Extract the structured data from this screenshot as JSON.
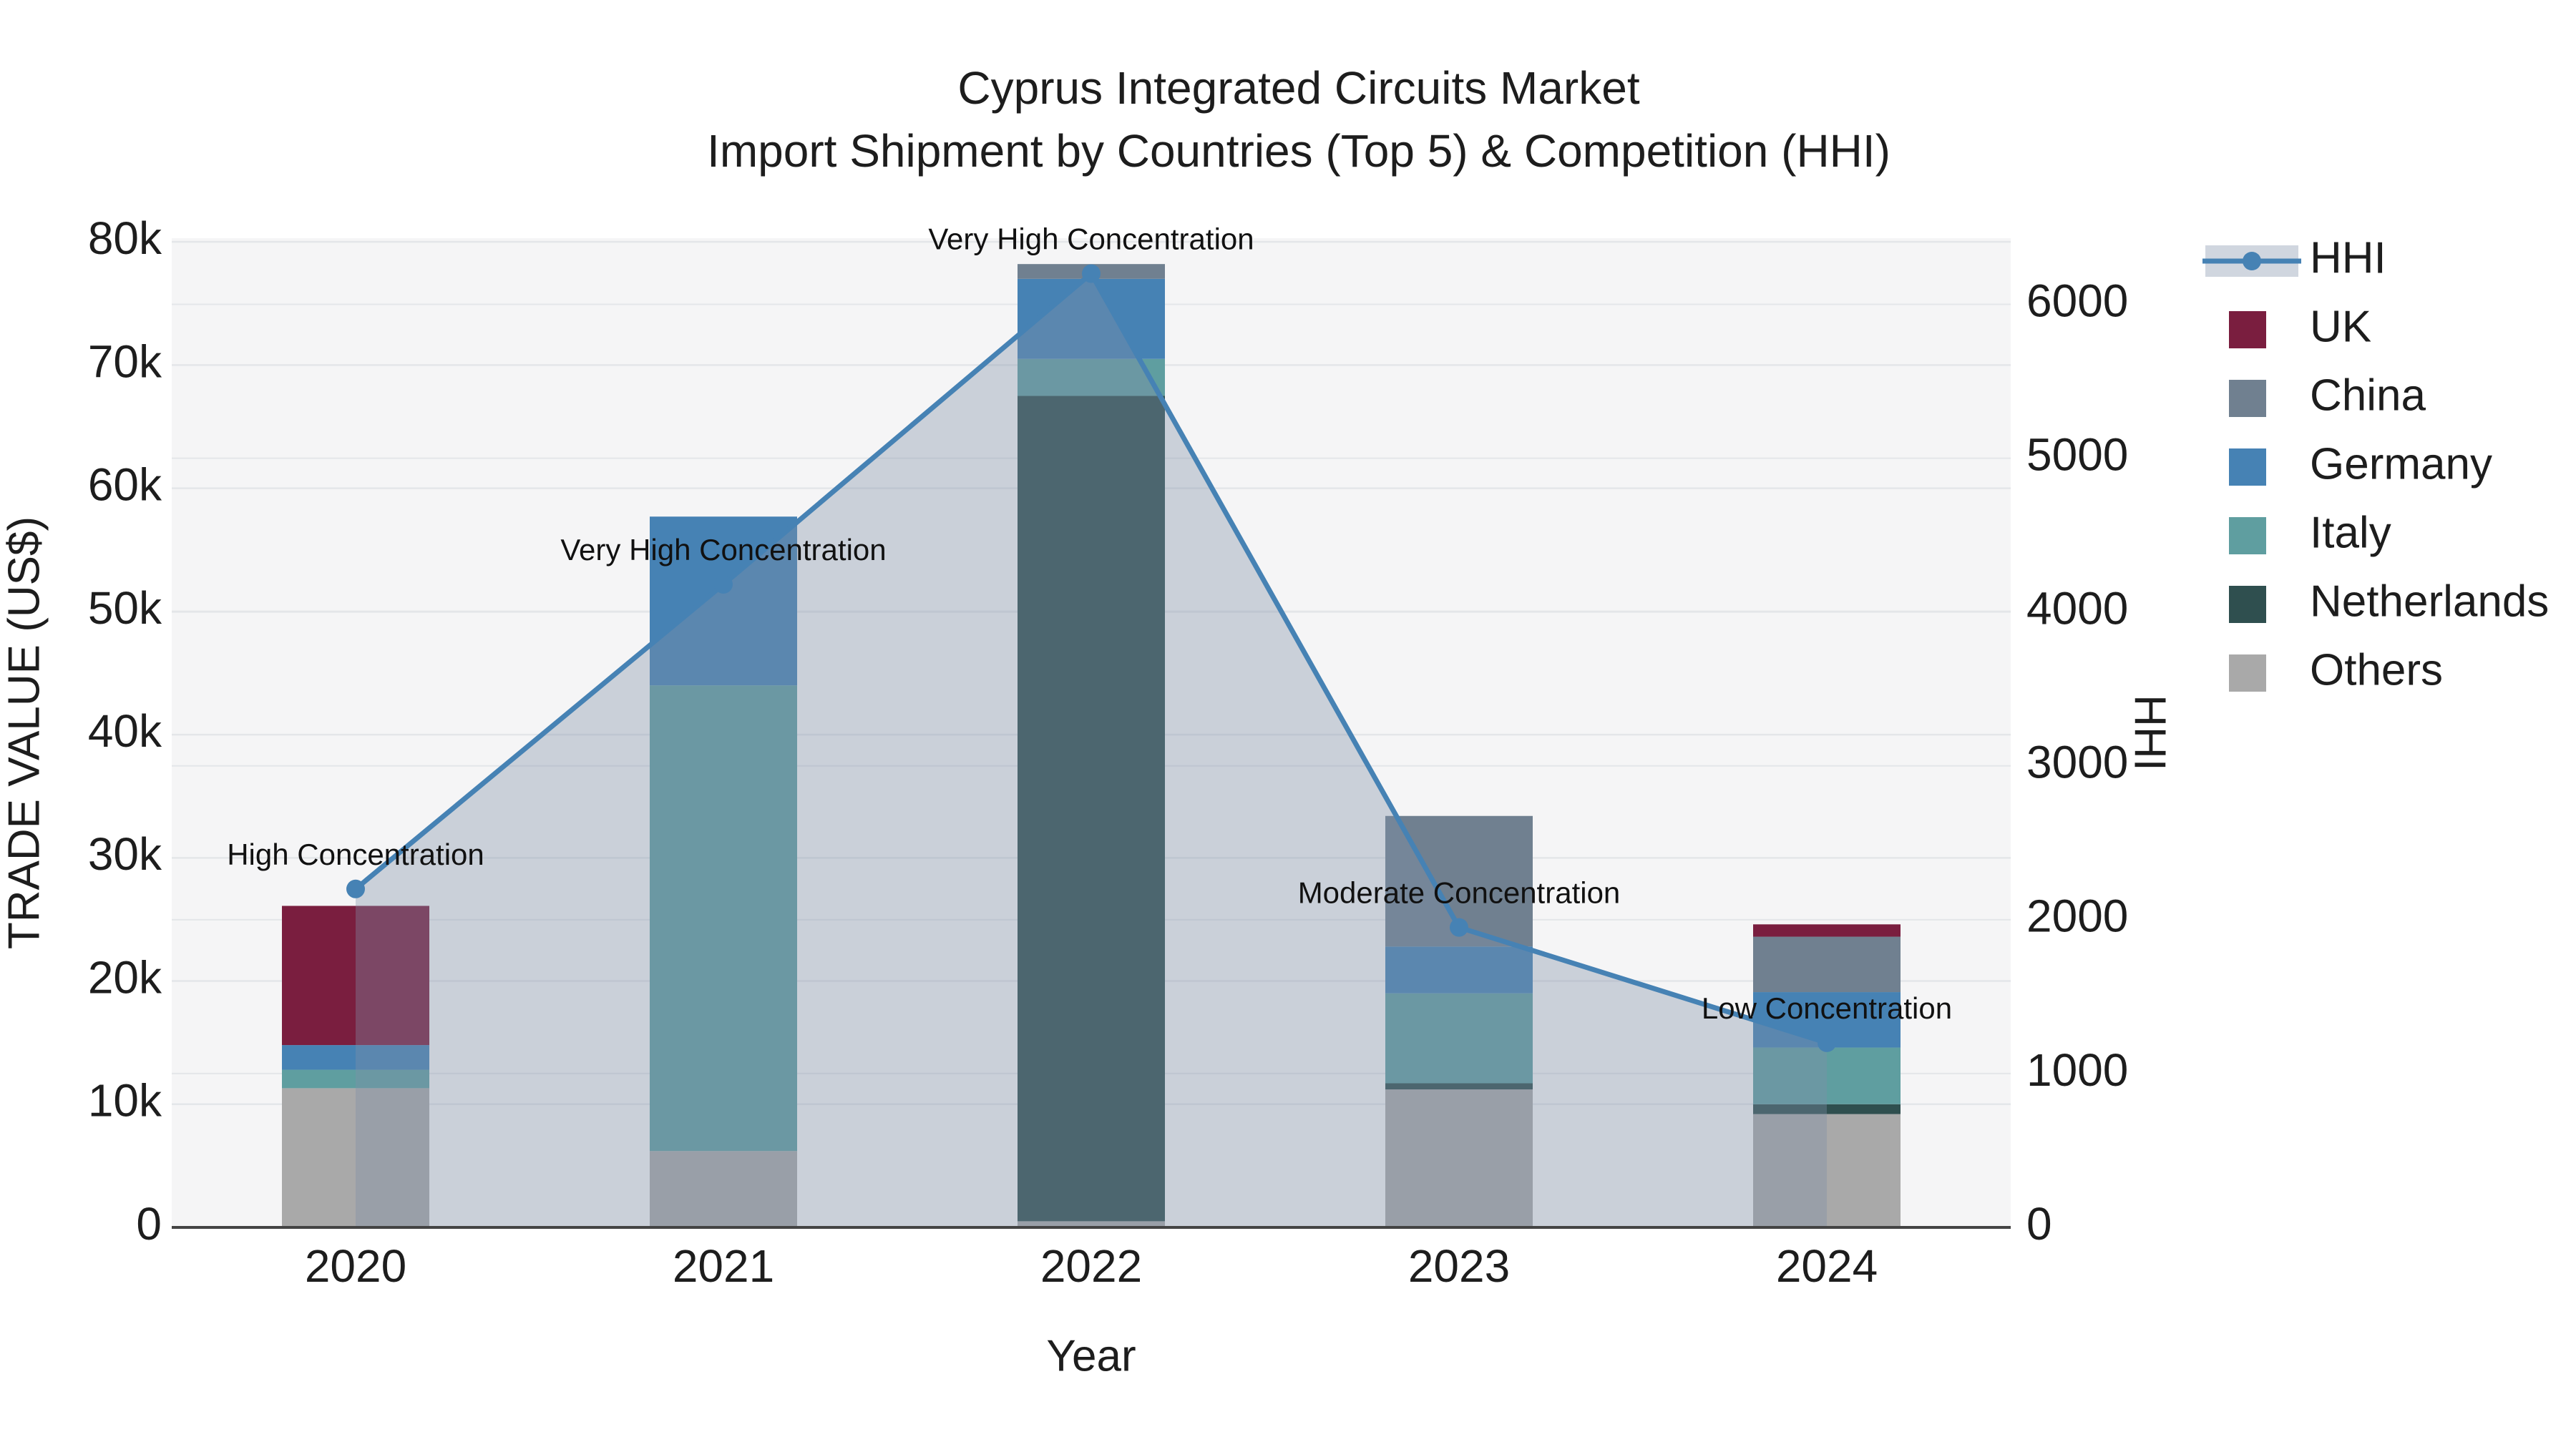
{
  "title": {
    "line1": "Cyprus Integrated Circuits Market",
    "line2": "Import Shipment by Countries (Top 5) & Competition (HHI)"
  },
  "axes": {
    "x": {
      "title": "Year",
      "ticks": [
        "2020",
        "2021",
        "2022",
        "2023",
        "2024"
      ]
    },
    "y_left": {
      "title": "TRADE VALUE (US$)",
      "ticks": [
        "0",
        "10k",
        "20k",
        "30k",
        "40k",
        "50k",
        "60k",
        "70k",
        "80k"
      ],
      "tick_values": [
        0,
        10000,
        20000,
        30000,
        40000,
        50000,
        60000,
        70000,
        80000
      ],
      "max": 80300
    },
    "y_right": {
      "title": "HHI",
      "ticks": [
        "0",
        "1000",
        "2000",
        "3000",
        "4000",
        "5000",
        "6000"
      ],
      "tick_values": [
        0,
        1000,
        2000,
        3000,
        4000,
        5000,
        6000
      ],
      "max": 6430
    }
  },
  "legend": {
    "items": [
      {
        "label": "HHI",
        "kind": "line",
        "color": "#4682b4"
      },
      {
        "label": "UK",
        "kind": "swatch",
        "color": "#7a1e3f"
      },
      {
        "label": "China",
        "kind": "swatch",
        "color": "#708090"
      },
      {
        "label": "Germany",
        "kind": "swatch",
        "color": "#4682b4"
      },
      {
        "label": "Italy",
        "kind": "swatch",
        "color": "#5f9ea0"
      },
      {
        "label": "Netherlands",
        "kind": "swatch",
        "color": "#2f4f4f"
      },
      {
        "label": "Others",
        "kind": "swatch",
        "color": "#a9a9a9"
      }
    ]
  },
  "colors": {
    "line": "#4682b4",
    "marker": "#4682b4",
    "area_fill": "rgba(128,144,168,0.37)",
    "plot_bg": "#f5f5f6",
    "gridline": "#e4e6e9",
    "axis_line": "#444444",
    "text": "#1d1d1d",
    "annotation_text": "#111111"
  },
  "chart_data": {
    "type": "combo: stacked-bar (left axis) + line with area fill (right axis)",
    "categories": [
      "2020",
      "2021",
      "2022",
      "2023",
      "2024"
    ],
    "bar_unit": "TRADE VALUE (US$)",
    "bar_stack_order_bottom_to_top": [
      "Others",
      "Netherlands",
      "Italy",
      "Germany",
      "China",
      "UK"
    ],
    "bar_series": [
      {
        "name": "UK",
        "color": "#7a1e3f",
        "values": [
          11300,
          0,
          0,
          0,
          1000
        ]
      },
      {
        "name": "China",
        "color": "#708090",
        "values": [
          0,
          0,
          1200,
          10600,
          4500
        ]
      },
      {
        "name": "Germany",
        "color": "#4682b4",
        "values": [
          2000,
          13700,
          6500,
          3800,
          4500
        ]
      },
      {
        "name": "Italy",
        "color": "#5f9ea0",
        "values": [
          1500,
          37800,
          3000,
          7300,
          4600
        ]
      },
      {
        "name": "Netherlands",
        "color": "#2f4f4f",
        "values": [
          0,
          0,
          67000,
          500,
          800
        ]
      },
      {
        "name": "Others",
        "color": "#a9a9a9",
        "values": [
          11300,
          6200,
          500,
          11200,
          9200
        ]
      }
    ],
    "bar_totals": [
      26100,
      57700,
      78200,
      33400,
      24600
    ],
    "line_series": {
      "name": "HHI",
      "axis": "right",
      "color": "#4682b4",
      "values": [
        2200,
        4180,
        6200,
        1950,
        1200
      ]
    },
    "annotations": [
      {
        "year": "2020",
        "text": "High Concentration"
      },
      {
        "year": "2021",
        "text": "Very High Concentration"
      },
      {
        "year": "2022",
        "text": "Very High Concentration"
      },
      {
        "year": "2023",
        "text": "Moderate Concentration"
      },
      {
        "year": "2024",
        "text": "Low Concentration"
      }
    ],
    "xlabel": "Year",
    "ylabel_left": "TRADE VALUE (US$)",
    "ylabel_right": "HHI",
    "ylim_left": [
      0,
      80300
    ],
    "ylim_right": [
      0,
      6430
    ],
    "grid": true,
    "legend_position": "right-outside"
  }
}
